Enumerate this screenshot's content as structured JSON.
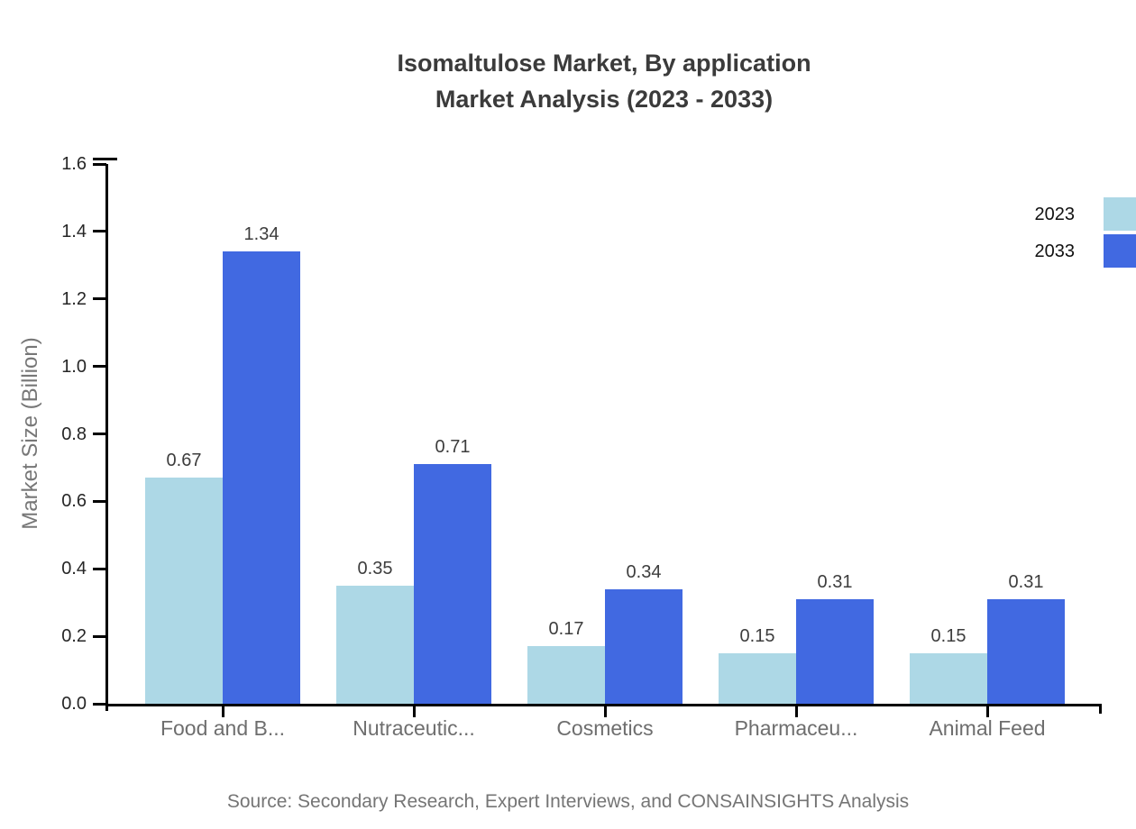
{
  "title": {
    "line1": "Isomaltulose Market, By application",
    "line2": "Market Analysis (2023 - 2033)"
  },
  "source": "Source: Secondary Research, Expert Interviews, and CONSAINSIGHTS Analysis",
  "legend": [
    {
      "label": "2023",
      "color": "#ADD8E6"
    },
    {
      "label": "2033",
      "color": "#4169E1"
    }
  ],
  "colors": {
    "series_2023": "#ADD8E6",
    "series_2033": "#4169E1",
    "axis": "#000000",
    "title_text": "#3b3b3b",
    "category_text": "#6e6e6e",
    "axis_title_text": "#777777",
    "source_text": "#757575"
  },
  "chart_data": {
    "type": "bar",
    "title": "Isomaltulose Market, By application Market Analysis (2023 - 2033)",
    "categories": [
      "Food and B...",
      "Nutraceutic...",
      "Cosmetics",
      "Pharmaceu...",
      "Animal Feed"
    ],
    "series": [
      {
        "name": "2023",
        "color": "#ADD8E6",
        "values": [
          0.67,
          0.35,
          0.17,
          0.15,
          0.15
        ]
      },
      {
        "name": "2033",
        "color": "#4169E1",
        "values": [
          1.34,
          0.71,
          0.34,
          0.31,
          0.31
        ]
      }
    ],
    "xlabel": "",
    "ylabel": "Market Size (Billion)",
    "ylim": [
      0,
      1.6
    ],
    "ytick_step": 0.2,
    "ytick_labels": [
      "0.0",
      "0.2",
      "0.4",
      "0.6",
      "0.8",
      "1.0",
      "1.2",
      "1.4",
      "1.6"
    ],
    "value_labels": true,
    "grid": false,
    "legend_position": "top-right"
  }
}
